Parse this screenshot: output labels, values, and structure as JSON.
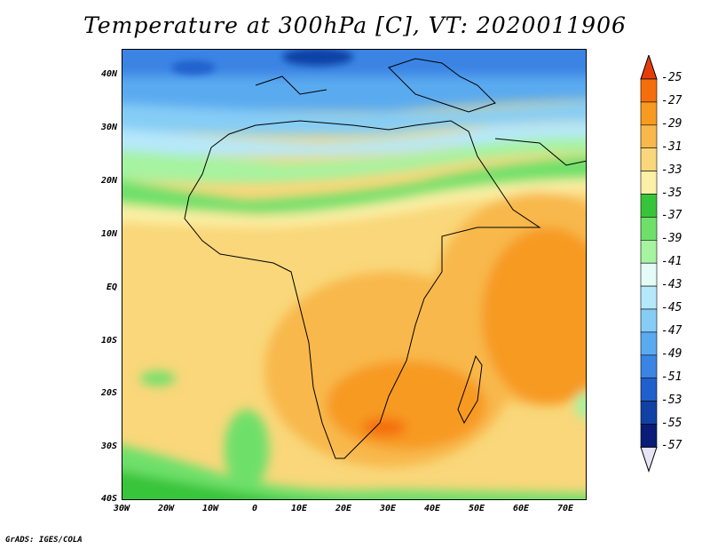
{
  "title": "Temperature at 300hPa [C], VT: 2020011906",
  "footer": "GrADS: IGES/COLA",
  "map": {
    "lat_labels": [
      "40N",
      "30N",
      "20N",
      "10N",
      "EQ",
      "10S",
      "20S",
      "30S",
      "40S"
    ],
    "lon_labels": [
      "30W",
      "20W",
      "10W",
      "0",
      "10E",
      "20E",
      "30E",
      "40E",
      "50E",
      "60E",
      "70E"
    ],
    "lat_range": [
      -40,
      45
    ],
    "lon_range": [
      -30,
      75
    ]
  },
  "colorbar": {
    "levels": [
      "-25",
      "-27",
      "-29",
      "-31",
      "-33",
      "-35",
      "-37",
      "-39",
      "-41",
      "-43",
      "-45",
      "-47",
      "-49",
      "-51",
      "-53",
      "-55",
      "-57"
    ],
    "colors": [
      "#e63c0a",
      "#f46e0c",
      "#f79a20",
      "#f8b84c",
      "#f9d77a",
      "#fbf0a6",
      "#38c43a",
      "#6ee06a",
      "#a6f3a0",
      "#e4fbf7",
      "#b6e8fb",
      "#86cdf6",
      "#5aaaf0",
      "#3a84e4",
      "#2060cc",
      "#1042a6",
      "#081c78",
      "#e8e4f8"
    ]
  }
}
